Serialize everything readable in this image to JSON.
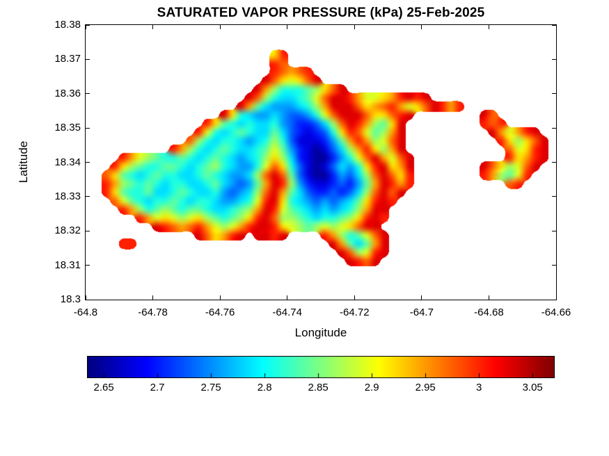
{
  "chart_data": {
    "type": "heatmap",
    "title": "SATURATED VAPOR PRESSURE (kPa) 25-Feb-2025",
    "xlabel": "Longitude",
    "ylabel": "Latitude",
    "xlim": [
      -64.8,
      -64.66
    ],
    "ylim": [
      18.3,
      18.38
    ],
    "xticks": [
      -64.8,
      -64.78,
      -64.76,
      -64.74,
      -64.72,
      -64.7,
      -64.68,
      -64.66
    ],
    "xtick_labels": [
      "-64.8",
      "-64.78",
      "-64.76",
      "-64.74",
      "-64.72",
      "-64.7",
      "-64.68",
      "-64.66"
    ],
    "yticks": [
      18.3,
      18.31,
      18.32,
      18.33,
      18.34,
      18.35,
      18.36,
      18.37,
      18.38
    ],
    "ytick_labels": [
      "18.3",
      "18.31",
      "18.32",
      "18.33",
      "18.34",
      "18.35",
      "18.36",
      "18.37",
      "18.38"
    ],
    "grid_lines": false,
    "background": "#ffffff",
    "axis_color": "#000000",
    "colormap": "jet",
    "units": "kPa",
    "colorbar": {
      "orientation": "horizontal",
      "position": "below",
      "vmin": 2.635,
      "vmax": 3.07,
      "ticks": [
        2.65,
        2.7,
        2.75,
        2.8,
        2.85,
        2.9,
        2.95,
        3,
        3.05
      ],
      "tick_labels": [
        "2.65",
        "2.7",
        "2.75",
        "2.8",
        "2.85",
        "2.9",
        "2.95",
        "3",
        "3.05"
      ]
    },
    "grid": {
      "ncols": 56,
      "nrows": 32,
      "lon_min": -64.8,
      "lon_step": 0.0025,
      "lat_max": 18.38,
      "lat_step": 0.0025,
      "levels": 16,
      "value_encoding": "each hex digit d is a level; value_kPa = colorbar.vmin + (d+0.5)/16 * (colorbar.vmax - colorbar.vmin); rows run north to south; each row is a list of [startColumn, digitString] segments; cells not covered are sea (no data)",
      "rows": [
        [],
        [],
        [],
        [
          [
            22,
            "ad"
          ]
        ],
        [
          [
            22,
            "dc"
          ]
        ],
        [
          [
            22,
            "dcbcd"
          ]
        ],
        [
          [
            21,
            "eca9ace"
          ]
        ],
        [
          [
            20,
            "eb866678ace"
          ]
        ],
        [
          [
            19,
            "ec8655679ceedb99abdede"
          ]
        ],
        [
          [
            18,
            "eb75444568beeecabcdb9acedbd"
          ]
        ],
        [
          [
            16,
            "ea65445433469ceeecaacde"
          ],
          [
            47,
            "ec"
          ]
        ],
        [
          [
            14,
            "da76565564322358cedb87ae"
          ],
          [
            47,
            "dcd"
          ]
        ],
        [
          [
            13,
            "d9656765575321236adc978be"
          ],
          [
            48,
            "eb9bde"
          ]
        ],
        [
          [
            12,
            "c865665456863111247bdb89ce"
          ],
          [
            49,
            "da8ace"
          ]
        ],
        [
          [
            10,
            "db86567655679742101358bda8be"
          ],
          [
            50,
            "c9ade"
          ]
        ],
        [
          [
            4,
            "db9876676567654568a8521002469ceb9ce"
          ],
          [
            50,
            "dabde"
          ]
        ],
        [
          [
            3,
            "da87667765678654469ca631013546adeabe"
          ],
          [
            47,
            "eca89ce"
          ]
        ],
        [
          [
            2,
            "ca76567665567654458cec7310024358cecad"
          ],
          [
            47,
            "db879d"
          ]
        ],
        [
          [
            2,
            "db87676566556754347bed8421123247bedbd"
          ],
          [
            50,
            "cd"
          ]
        ],
        [
          [
            2,
            "da76675567655643458ceb7532232358cece"
          ]
        ],
        [
          [
            3,
            "c97656676566544569dea654343457aded"
          ]
        ],
        [
          [
            4,
            "db86787677655678bed9765454568bee"
          ]
        ],
        [
          [
            6,
            "db9a989a87678adec887656678aded"
          ]
        ],
        [
          [
            8,
            "edcbcdb989bdeeda9878989acee"
          ]
        ],
        [
          [
            13,
            "ecabde"
          ],
          [
            20,
            "eede"
          ],
          [
            28,
            "db8679ce"
          ]
        ],
        [
          [
            4,
            "dd"
          ],
          [
            29,
            "eb757be"
          ]
        ],
        [
          [
            30,
            "ec89de"
          ]
        ],
        [
          [
            31,
            "edce"
          ]
        ],
        [],
        [],
        [],
        []
      ]
    }
  }
}
